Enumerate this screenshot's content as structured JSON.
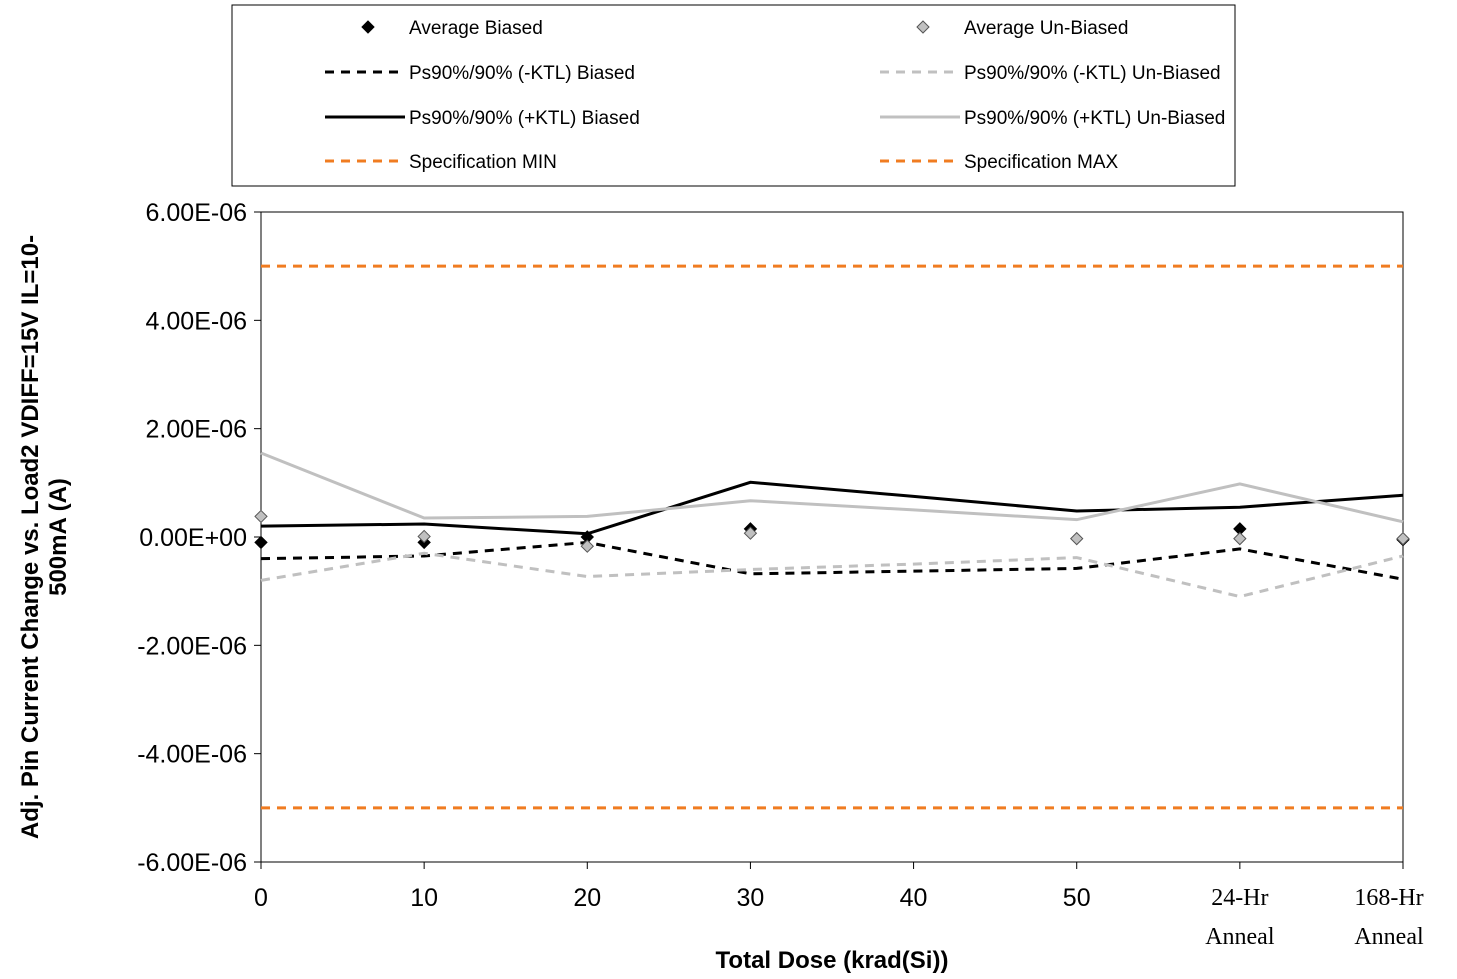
{
  "chart_data": {
    "type": "line",
    "title": "",
    "xlabel": "Total Dose (krad(Si))",
    "ylabel_line1": "Adj. Pin Current Change vs. Load2 VDIFF=15V IL=10-",
    "ylabel_line2": "500mA (A)",
    "x_ticks": [
      "0",
      "10",
      "20",
      "30",
      "40",
      "50"
    ],
    "x_tick_values": [
      0,
      10,
      20,
      30,
      40,
      50
    ],
    "anneal_ticks": [
      {
        "x": 60,
        "line1": "24-Hr",
        "line2": "Anneal"
      },
      {
        "x": 70,
        "line1": "168-Hr",
        "line2": "Anneal"
      }
    ],
    "xlim": [
      0,
      70
    ],
    "ylim": [
      -6e-06,
      6e-06
    ],
    "y_ticks": [
      "6.00E-06",
      "4.00E-06",
      "2.00E-06",
      "0.00E+00",
      "-2.00E-06",
      "-4.00E-06",
      "-6.00E-06"
    ],
    "y_tick_values": [
      6e-06,
      4e-06,
      2e-06,
      0,
      -2e-06,
      -4e-06,
      -6e-06
    ],
    "legend_placement": "top",
    "series": [
      {
        "name": "Average Biased",
        "style": "marker",
        "color": "#000000",
        "fill": "#000000",
        "x": [
          0,
          10,
          20,
          30,
          60,
          70
        ],
        "y": [
          -1e-07,
          -1e-07,
          0.0,
          1.5e-07,
          1.5e-07,
          -5e-08
        ]
      },
      {
        "name": "Average Un-Biased",
        "style": "marker",
        "color": "#555555",
        "fill": "#c0c0c0",
        "x": [
          0,
          10,
          20,
          30,
          50,
          60,
          70
        ],
        "y": [
          3.8e-07,
          1e-08,
          -1.7e-07,
          7e-08,
          -3e-08,
          -3e-08,
          -3e-08
        ]
      },
      {
        "name": "Ps90%/90% (-KTL) Biased",
        "style": "dash",
        "color": "#000000",
        "x": [
          0,
          10,
          20,
          30,
          40,
          50,
          60,
          70
        ],
        "y": [
          -4e-07,
          -3.5e-07,
          -1e-07,
          -6.8e-07,
          -6.3e-07,
          -5.8e-07,
          -2.2e-07,
          -7.8e-07
        ]
      },
      {
        "name": "Ps90%/90% (-KTL) Un-Biased",
        "style": "dash",
        "color": "#c0c0c0",
        "x": [
          0,
          10,
          20,
          30,
          40,
          50,
          60,
          70
        ],
        "y": [
          -8e-07,
          -3e-07,
          -7.3e-07,
          -6e-07,
          -5e-07,
          -3.8e-07,
          -1.1e-06,
          -3.5e-07
        ]
      },
      {
        "name": "Ps90%/90% (+KTL) Biased",
        "style": "solid",
        "color": "#000000",
        "x": [
          0,
          10,
          20,
          30,
          40,
          50,
          60,
          70
        ],
        "y": [
          2e-07,
          2.4e-07,
          6e-08,
          1.01e-06,
          7.5e-07,
          4.8e-07,
          5.5e-07,
          7.7e-07
        ]
      },
      {
        "name": "Ps90%/90% (+KTL) Un-Biased",
        "style": "solid",
        "color": "#c0c0c0",
        "x": [
          0,
          10,
          20,
          30,
          40,
          50,
          60,
          70
        ],
        "y": [
          1.55e-06,
          3.5e-07,
          3.8e-07,
          6.7e-07,
          5e-07,
          3.2e-07,
          9.8e-07,
          2.8e-07
        ]
      },
      {
        "name": "Specification MIN",
        "style": "dash",
        "color": "#f07c21",
        "x": [
          0,
          70
        ],
        "y": [
          -5e-06,
          -5e-06
        ]
      },
      {
        "name": "Specification MAX",
        "style": "dash",
        "color": "#f07c21",
        "x": [
          0,
          70
        ],
        "y": [
          5e-06,
          5e-06
        ]
      }
    ],
    "legend": [
      {
        "label": "Average Biased",
        "series": 0
      },
      {
        "label": "Average Un-Biased",
        "series": 1
      },
      {
        "label": "Ps90%/90% (-KTL) Biased",
        "series": 2
      },
      {
        "label": "Ps90%/90% (-KTL) Un-Biased",
        "series": 3
      },
      {
        "label": "Ps90%/90% (+KTL) Biased",
        "series": 4
      },
      {
        "label": "Ps90%/90% (+KTL) Un-Biased",
        "series": 5
      },
      {
        "label": "Specification MIN",
        "series": 6
      },
      {
        "label": "Specification MAX",
        "series": 7
      }
    ]
  }
}
